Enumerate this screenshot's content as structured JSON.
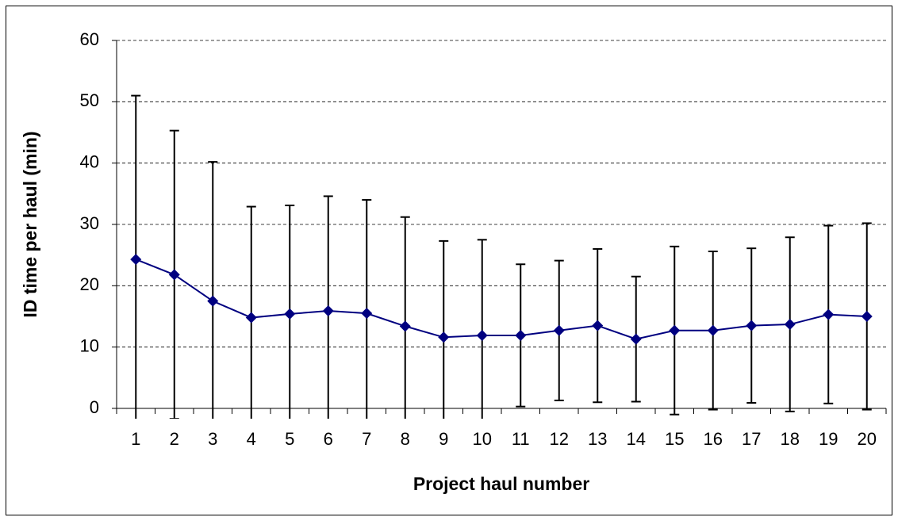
{
  "chart_data": {
    "type": "line",
    "xlabel": "Project haul number",
    "ylabel": "ID time per haul (min)",
    "categories": [
      "1",
      "2",
      "3",
      "4",
      "5",
      "6",
      "7",
      "8",
      "9",
      "10",
      "11",
      "12",
      "13",
      "14",
      "15",
      "16",
      "17",
      "18",
      "19",
      "20"
    ],
    "series": [
      {
        "color": "#000080",
        "values": [
          24.3,
          21.8,
          17.5,
          14.8,
          15.4,
          15.9,
          15.5,
          13.4,
          11.6,
          11.9,
          11.9,
          12.7,
          13.5,
          11.3,
          12.7,
          12.7,
          13.5,
          13.7,
          15.3,
          15.0
        ],
        "errors": [
          26.7,
          23.5,
          22.7,
          18.1,
          17.7,
          18.7,
          18.5,
          17.8,
          15.7,
          15.6,
          11.6,
          11.4,
          12.5,
          10.2,
          13.7,
          12.9,
          12.6,
          14.2,
          14.5,
          15.2
        ]
      }
    ],
    "ylim": [
      0,
      60
    ],
    "yticks": [
      0,
      10,
      20,
      30,
      40,
      50,
      60
    ],
    "grid": true
  }
}
